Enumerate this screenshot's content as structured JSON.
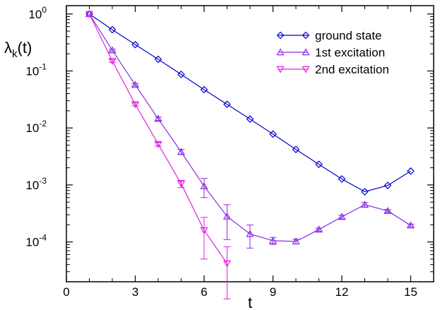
{
  "chart_data": {
    "type": "line",
    "xlabel": "t",
    "ylabel": "λk(t)",
    "ylabel_main": "λ",
    "ylabel_sub": "k",
    "ylabel_rest": "(t)",
    "xlim": [
      0,
      16
    ],
    "ylim": [
      2e-05,
      1.4
    ],
    "yscale": "log",
    "grid": false,
    "legend_position": "top-right",
    "xticks": [
      0,
      3,
      6,
      9,
      12,
      15
    ],
    "yticks": [
      {
        "base": "10",
        "exp": "0",
        "value": 1
      },
      {
        "base": "10",
        "exp": "-1",
        "value": 0.1
      },
      {
        "base": "10",
        "exp": "-2",
        "value": 0.01
      },
      {
        "base": "10",
        "exp": "-3",
        "value": 0.001
      },
      {
        "base": "10",
        "exp": "-4",
        "value": 0.0001
      }
    ],
    "series": [
      {
        "name": "ground state",
        "color": "#0000cc",
        "marker": "diamond",
        "x": [
          1,
          2,
          3,
          4,
          5,
          6,
          7,
          8,
          9,
          10,
          11,
          12,
          13,
          14,
          15
        ],
        "y": [
          1.0,
          0.53,
          0.29,
          0.16,
          0.087,
          0.047,
          0.026,
          0.0143,
          0.0078,
          0.0042,
          0.0023,
          0.00127,
          0.00076,
          0.00098,
          0.00175
        ],
        "err": [
          0,
          0,
          0,
          0,
          0,
          0,
          0,
          0,
          0,
          0,
          0,
          0,
          0,
          0,
          0
        ]
      },
      {
        "name": "1st excitation",
        "color": "#8b2be2",
        "marker": "triangle-up",
        "x": [
          1,
          2,
          3,
          4,
          5,
          6,
          7,
          8,
          9,
          10,
          11,
          12,
          13,
          14,
          15
        ],
        "y": [
          1.0,
          0.23,
          0.057,
          0.0145,
          0.0038,
          0.00095,
          0.00028,
          0.000138,
          0.000105,
          0.000102,
          0.000165,
          0.000275,
          0.00045,
          0.00035,
          0.000195
        ],
        "err": [
          0,
          0.01,
          0.003,
          0.001,
          0.0004,
          0.00035,
          0.00017,
          6e-05,
          1.5e-05,
          1e-05,
          1e-05,
          2e-05,
          4e-05,
          2e-05,
          1e-05
        ]
      },
      {
        "name": "2nd excitation",
        "color": "#e020e0",
        "marker": "triangle-down",
        "x": [
          1,
          2,
          3,
          4,
          5,
          6,
          7
        ],
        "y": [
          1.0,
          0.15,
          0.026,
          0.0052,
          0.00105,
          0.00016,
          4.2e-05
        ],
        "err": [
          0,
          0.008,
          0.0015,
          0.0004,
          0.00015,
          0.00011,
          4e-05
        ]
      }
    ]
  }
}
